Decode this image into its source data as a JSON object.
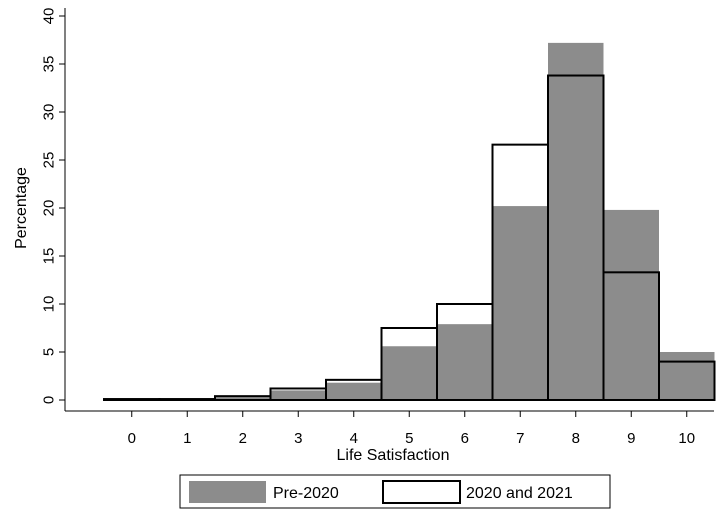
{
  "chart_data": {
    "type": "bar",
    "title": "",
    "xlabel": "Life Satisfaction",
    "ylabel": "Percentage",
    "categories": [
      "0",
      "1",
      "2",
      "3",
      "4",
      "5",
      "6",
      "7",
      "8",
      "9",
      "10"
    ],
    "x": [
      0,
      1,
      2,
      3,
      4,
      5,
      6,
      7,
      8,
      9,
      10
    ],
    "ylim": [
      0,
      40
    ],
    "yticks": [
      "0",
      "5",
      "10",
      "15",
      "20",
      "25",
      "30",
      "35",
      "40"
    ],
    "grid": false,
    "legend_position": "bottom",
    "series": [
      {
        "name": "Pre-2020",
        "style": "filled",
        "color": "#8c8c8c",
        "values": [
          0.1,
          0.1,
          0.3,
          1.0,
          1.8,
          5.6,
          7.9,
          20.2,
          37.2,
          19.8,
          5.0
        ]
      },
      {
        "name": "2020 and 2021",
        "style": "outline",
        "color": "#000000",
        "values": [
          0.1,
          0.1,
          0.4,
          1.2,
          2.1,
          7.5,
          10.0,
          26.6,
          33.8,
          13.3,
          4.0
        ]
      }
    ]
  }
}
